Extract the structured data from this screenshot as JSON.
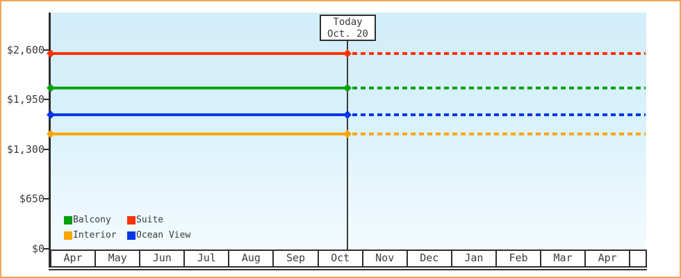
{
  "window": {
    "frame_color": "#efa55b",
    "background_color": "#ffffff",
    "plot_background_top": "#d2eefa",
    "plot_background_bottom": "#f3fbfe",
    "axis_color": "#2e2e2e",
    "text_color": "#3c3c3c"
  },
  "chart_data": {
    "type": "line",
    "title": "",
    "xlabel": "",
    "ylabel": "",
    "grid": false,
    "x_categories": [
      "Apr",
      "May",
      "Jun",
      "Jul",
      "Aug",
      "Sep",
      "Oct",
      "Nov",
      "Dec",
      "Jan",
      "Feb",
      "Mar",
      "Apr"
    ],
    "x_trailing_empty_cell": true,
    "ylim": [
      0,
      2600
    ],
    "y_ticks": [
      {
        "value": 0,
        "label": "$0"
      },
      {
        "value": 650,
        "label": "$650"
      },
      {
        "value": 1300,
        "label": "$1,300"
      },
      {
        "value": 1950,
        "label": "$1,950"
      },
      {
        "value": 2600,
        "label": "$2,600"
      }
    ],
    "today_marker": {
      "line1": "Today",
      "line2": "Oct. 20",
      "month": "Oct",
      "day": 20,
      "style_before": "solid",
      "style_after": "dashed"
    },
    "series": [
      {
        "name": "Balcony",
        "color": "#09a00e",
        "value": 2100,
        "constant": true
      },
      {
        "name": "Suite",
        "color": "#f93208",
        "value": 2550,
        "constant": true
      },
      {
        "name": "Interior",
        "color": "#f9a602",
        "value": 1500,
        "constant": true
      },
      {
        "name": "Ocean View",
        "color": "#0535e8",
        "value": 1750,
        "constant": true
      }
    ],
    "legend": {
      "position": "bottom-left",
      "columns": 2,
      "entries": [
        "Balcony",
        "Suite",
        "Interior",
        "Ocean View"
      ]
    }
  }
}
